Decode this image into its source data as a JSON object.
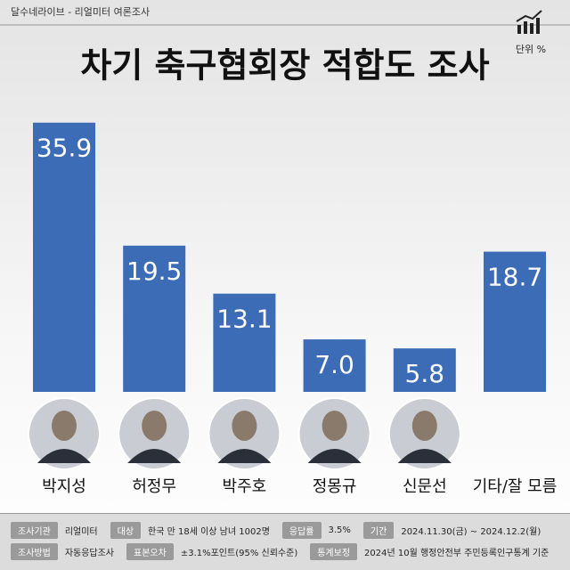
{
  "header": "달수네라이브 - 리얼미터 여론조사",
  "unit": "단위 %",
  "chart_data": {
    "type": "bar",
    "title": "차기 축구협회장 적합도 조사",
    "categories": [
      "박지성",
      "허정무",
      "박주호",
      "정몽규",
      "신문선",
      "기타/잘 모름"
    ],
    "values": [
      35.9,
      19.5,
      13.1,
      7.0,
      5.8,
      18.7
    ],
    "value_labels": [
      "35.9",
      "19.5",
      "13.1",
      "7.0",
      "5.8",
      "18.7"
    ],
    "color": "#3d6cb7"
  },
  "footer": {
    "rows": [
      [
        {
          "label": "조사기관",
          "value": "리얼미터"
        },
        {
          "label": "대상",
          "value": "한국 만 18세 이상 남녀 1002명"
        },
        {
          "label": "응답률",
          "value": "3.5%"
        },
        {
          "label": "기간",
          "value": "2024.11.30(금) ~ 2024.12.2(월)"
        }
      ],
      [
        {
          "label": "조사방법",
          "value": "자동응답조사"
        },
        {
          "label": "표본오차",
          "value": "±3.1%포인트(95% 신뢰수준)"
        },
        {
          "label": "통계보정",
          "value": "2024년 10월 행정안전부 주민등록인구통계 기준"
        }
      ]
    ]
  }
}
